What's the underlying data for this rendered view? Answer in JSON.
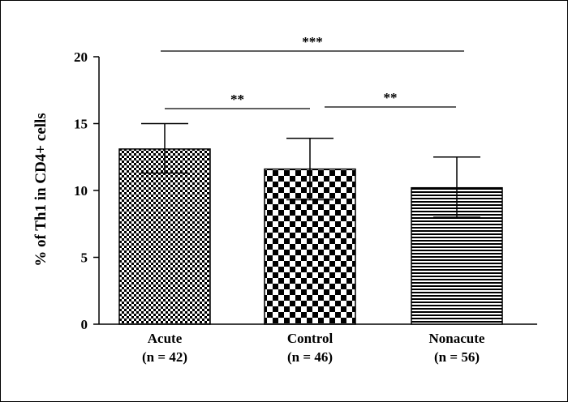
{
  "chart_data": {
    "type": "bar",
    "title": "",
    "xlabel": "",
    "ylabel": "% of Th1 in CD4+ cells",
    "ylim": [
      0,
      20
    ],
    "yticks": [
      0,
      5,
      10,
      15,
      20
    ],
    "grid": false,
    "categories": [
      {
        "name": "Acute",
        "n": "(n = 42)",
        "value": 13.1,
        "err_low": 11.3,
        "err_high": 15.0,
        "pattern": "fine-checker"
      },
      {
        "name": "Control",
        "n": "(n = 46)",
        "value": 11.6,
        "err_low": 9.3,
        "err_high": 13.9,
        "pattern": "large-checker"
      },
      {
        "name": "Nonacute",
        "n": "(n = 56)",
        "value": 10.2,
        "err_low": 8.0,
        "err_high": 12.5,
        "pattern": "horizontal-lines"
      }
    ],
    "significance": [
      {
        "from": 0,
        "to": 1,
        "label": "**",
        "y": 16.0
      },
      {
        "from": 1,
        "to": 2,
        "label": "**",
        "y": 16.0
      },
      {
        "from": 0,
        "to": 2,
        "label": "***",
        "y": 20.4
      }
    ]
  }
}
